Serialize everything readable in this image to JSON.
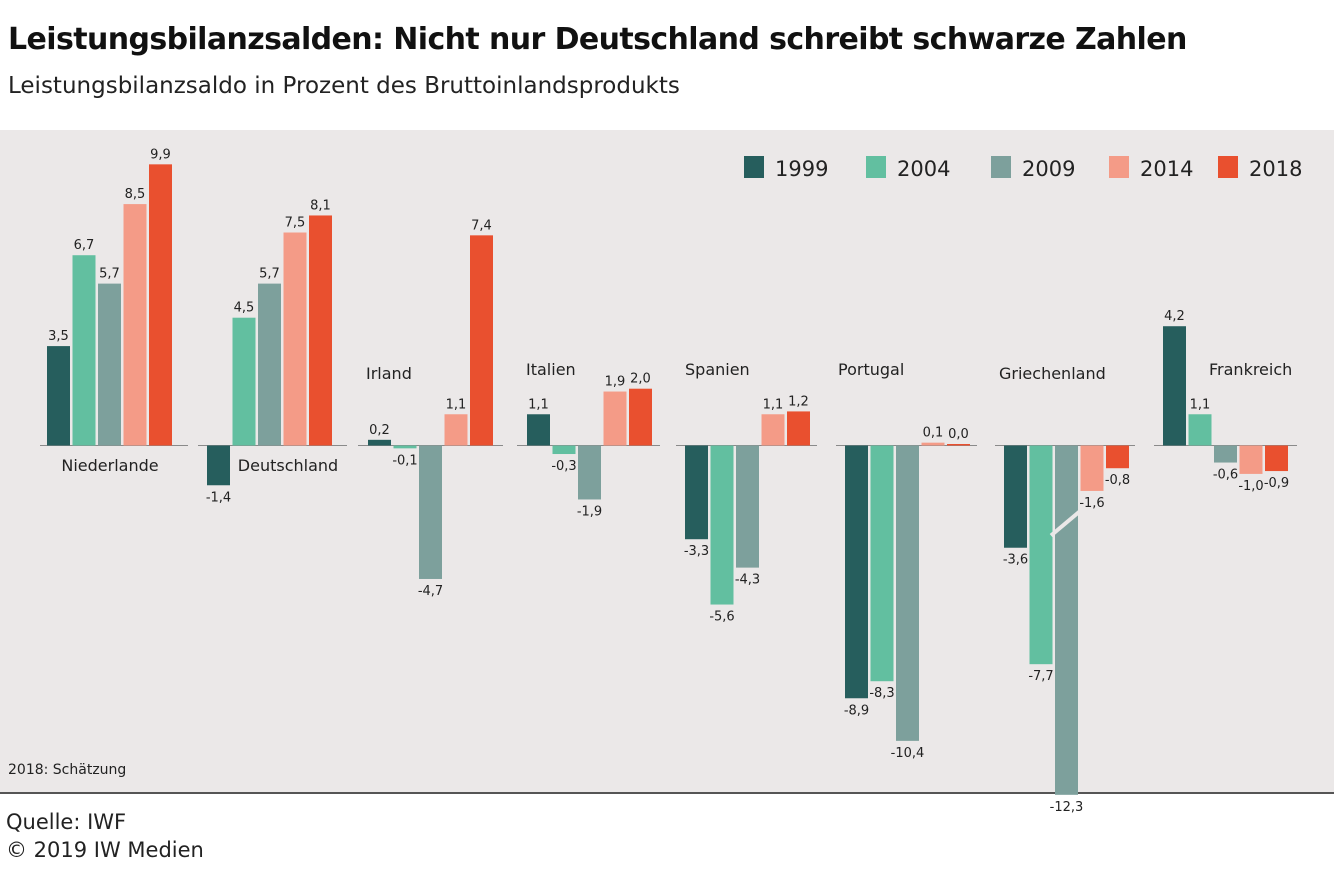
{
  "header": {
    "title": "Leistungsbilanzsalden: Nicht nur Deutschland schreibt schwarze Zahlen",
    "subtitle": "Leistungsbilanzsaldo in Prozent des Bruttoinlandsprodukts"
  },
  "footer": {
    "note": "2018: Schätzung",
    "source": "Quelle: IWF",
    "copyright": "© 2019 IW Medien"
  },
  "chart_data": {
    "type": "bar",
    "title": "Leistungsbilanzsalden: Nicht nur Deutschland schreibt schwarze Zahlen",
    "subtitle": "Leistungsbilanzsaldo in Prozent des Bruttoinlandsprodukts",
    "categories": [
      "Niederlande",
      "Deutschland",
      "Irland",
      "Italien",
      "Spanien",
      "Portugal",
      "Griechenland",
      "Frankreich"
    ],
    "series": [
      {
        "name": "1999",
        "color": "#265e5d",
        "values": [
          3.5,
          -1.4,
          0.2,
          1.1,
          -3.3,
          -8.9,
          -3.6,
          4.2
        ],
        "labels": [
          "3,5",
          "-1,4",
          "0,2",
          "1,1",
          "-3,3",
          "-8,9",
          "-3,6",
          "4,2"
        ]
      },
      {
        "name": "2004",
        "color": "#62bfa0",
        "values": [
          6.7,
          4.5,
          -0.1,
          -0.3,
          -5.6,
          -8.3,
          -7.7,
          1.1
        ],
        "labels": [
          "6,7",
          "4,5",
          "-0,1",
          "-0,3",
          "-5,6",
          "-8,3",
          "-7,7",
          "1,1"
        ]
      },
      {
        "name": "2009",
        "color": "#7da09c",
        "values": [
          5.7,
          5.7,
          -4.7,
          -1.9,
          -4.3,
          -10.4,
          -12.3,
          -0.6
        ],
        "labels": [
          "5,7",
          "5,7",
          "-4,7",
          "-1,9",
          "-4,3",
          "-10,4",
          "-12,3",
          "-0,6"
        ]
      },
      {
        "name": "2014",
        "color": "#f49b87",
        "values": [
          8.5,
          7.5,
          1.1,
          1.9,
          1.1,
          0.1,
          -1.6,
          -1.0
        ],
        "labels": [
          "8,5",
          "7,5",
          "1,1",
          "1,9",
          "1,1",
          "0,1",
          "-1,6",
          "-1,0"
        ]
      },
      {
        "name": "2018",
        "color": "#e9502f",
        "values": [
          9.9,
          8.1,
          7.4,
          2.0,
          1.2,
          0.0,
          -0.8,
          -0.9
        ],
        "labels": [
          "9,9",
          "8,1",
          "7,4",
          "2,0",
          "1,2",
          "0,0",
          "-0,8",
          "-0,9"
        ]
      }
    ],
    "axis_break": {
      "category": "Griechenland",
      "series": "2009"
    },
    "legend_position": "top-right",
    "grid": false
  }
}
